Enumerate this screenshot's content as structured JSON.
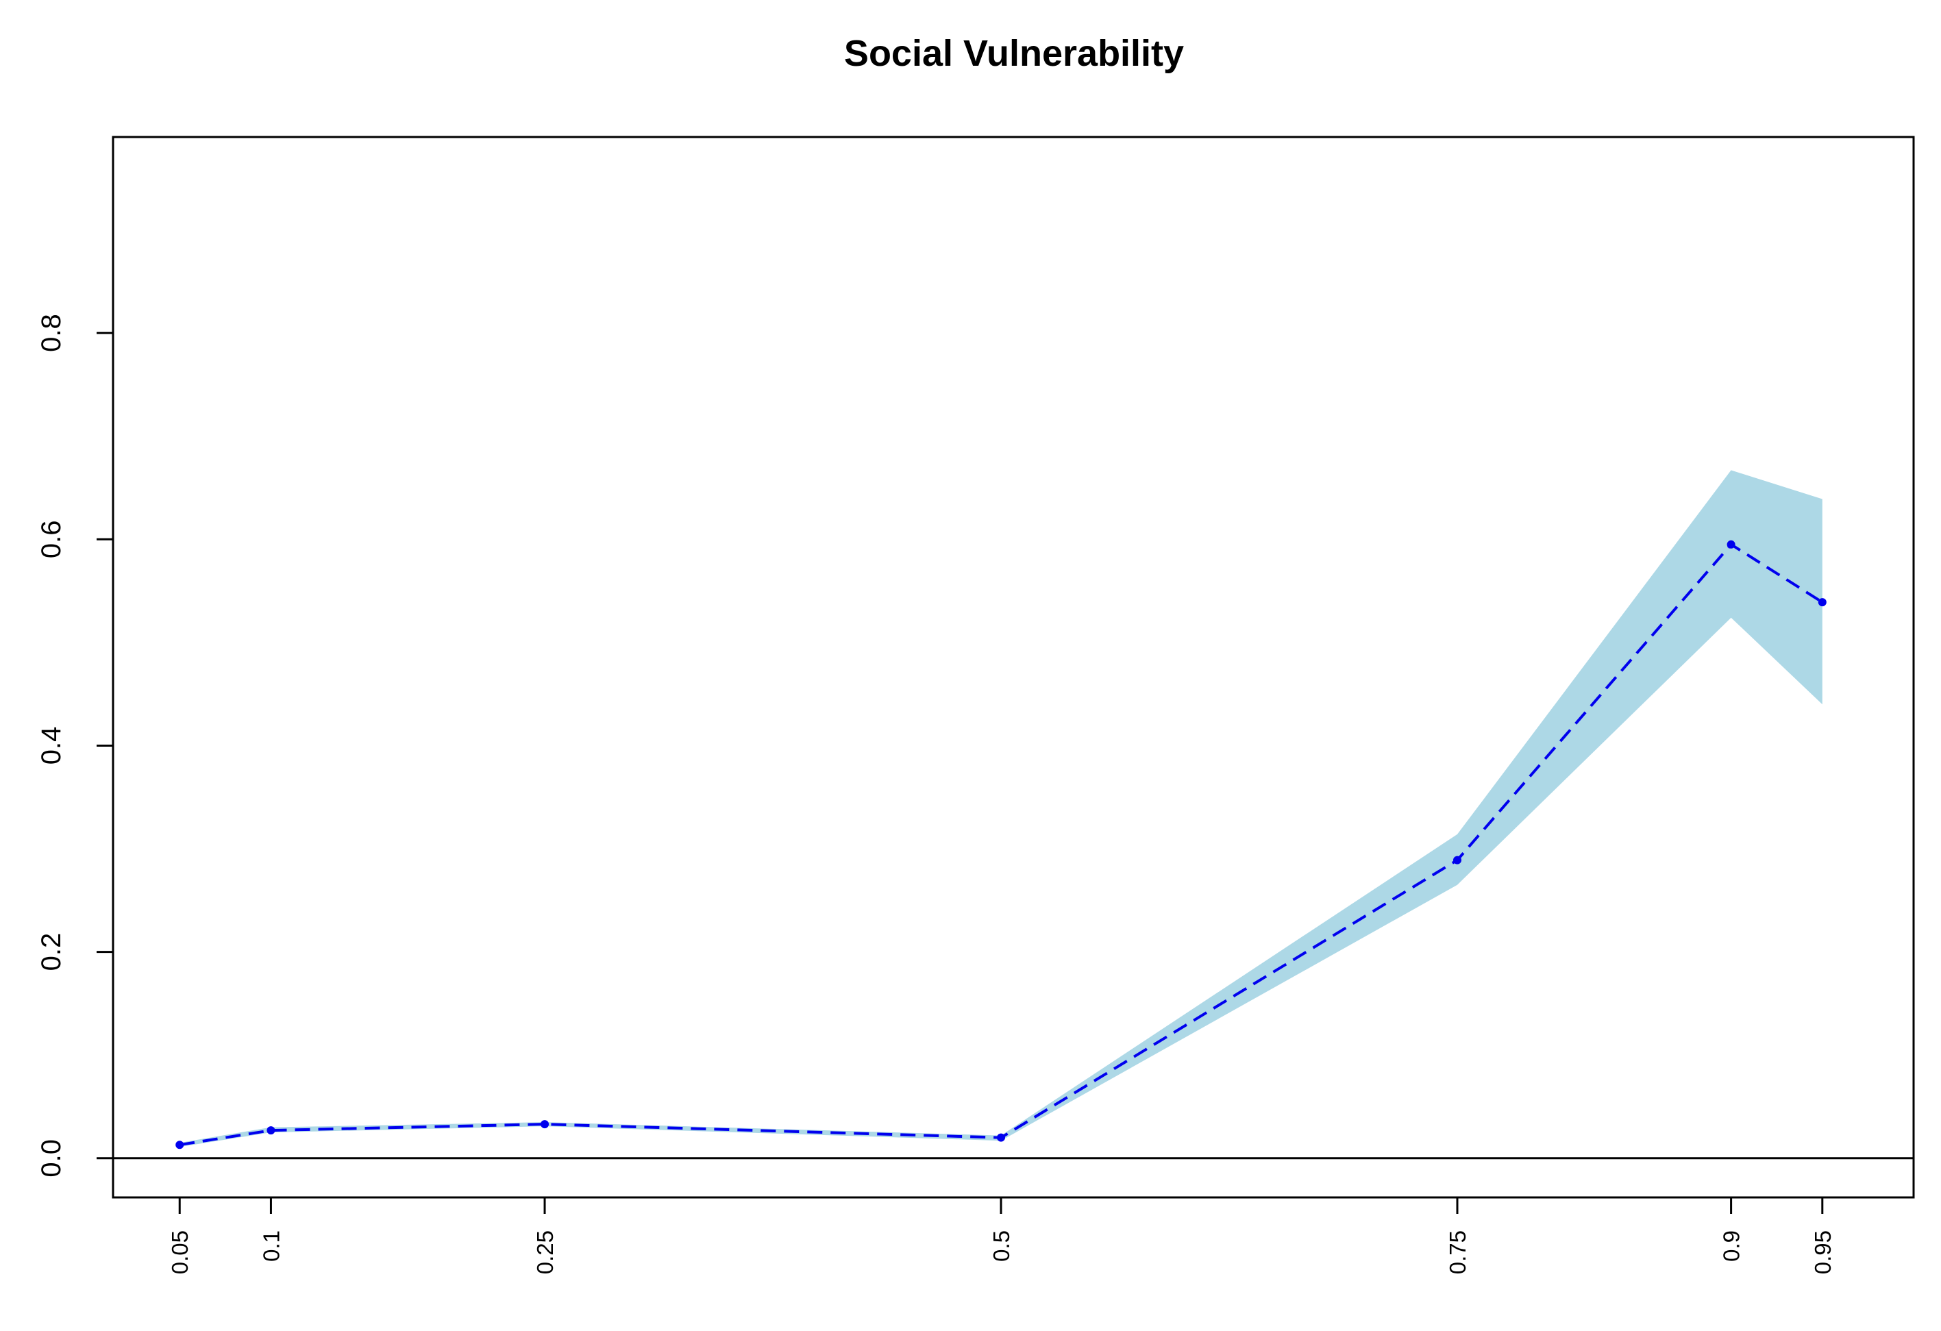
{
  "chart_data": {
    "type": "line",
    "title": "Social Vulnerability",
    "xlabel": "",
    "ylabel": "",
    "x": [
      0.05,
      0.1,
      0.25,
      0.5,
      0.75,
      0.9,
      0.95
    ],
    "x_tick_labels": [
      "0.05",
      "0.1",
      "0.25",
      "0.5",
      "0.75",
      "0.9",
      "0.95"
    ],
    "y_ticks": [
      0.0,
      0.2,
      0.4,
      0.6,
      0.8
    ],
    "y_tick_labels": [
      "0.0",
      "0.2",
      "0.4",
      "0.6",
      "0.8"
    ],
    "xlim": [
      0.0135,
      1.0
    ],
    "ylim": [
      -0.038,
      0.99
    ],
    "reference_line_y": 0.0,
    "grid": false,
    "legend": "none",
    "series": [
      {
        "values": [
          0.013,
          0.027,
          0.033,
          0.02,
          0.289,
          0.595,
          0.539
        ],
        "lower": [
          0.011,
          0.025,
          0.031,
          0.017,
          0.265,
          0.524,
          0.44
        ],
        "upper": [
          0.015,
          0.03,
          0.035,
          0.022,
          0.314,
          0.667,
          0.639
        ],
        "line_style": "dashed",
        "markers": true
      }
    ],
    "colors": {
      "line": "#0000ee",
      "band": "#add8e6",
      "axes": "#000000"
    }
  }
}
